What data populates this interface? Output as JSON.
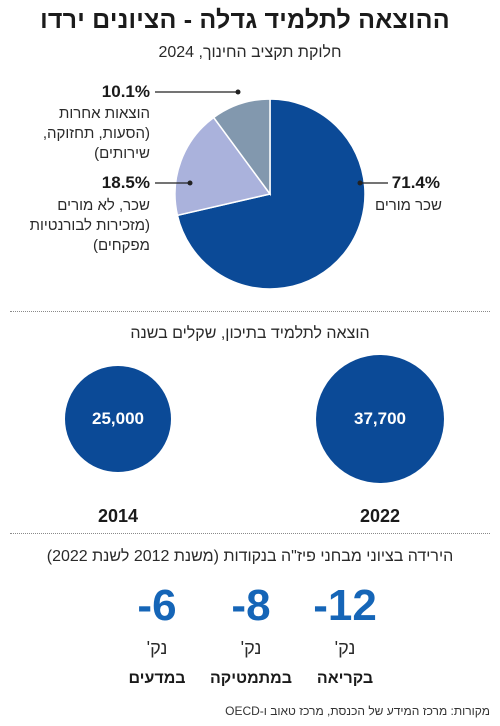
{
  "title": "ההוצאה לתלמיד גדלה - הציונים ירדו",
  "chart_data": [
    {
      "type": "pie",
      "title": "חלוקת תקציב החינוך, 2024",
      "slices": [
        {
          "label": "שכר מורים",
          "value": 71.4,
          "value_label": "71.4%",
          "color": "#0b4a97"
        },
        {
          "label": "שכר, לא מורים (מזכירות לבורנטיות מפקחים)",
          "label_lines": [
            "שכר, לא מורים",
            "(מזכירות לבורנטיות",
            "מפקחים)"
          ],
          "value": 18.5,
          "value_label": "18.5%",
          "color": "#aab2dc"
        },
        {
          "label": "הוצאות אחרות (הסעות, תחזוקה, שירותים)",
          "label_lines": [
            "הוצאות אחרות",
            "(הסעות, תחזוקה,",
            "שירותים)"
          ],
          "value": 10.1,
          "value_label": "10.1%",
          "color": "#8298ae"
        }
      ]
    },
    {
      "type": "bar",
      "title": "הוצאה לתלמיד בתיכון, שקלים בשנה",
      "categories": [
        "2014",
        "2022"
      ],
      "values": [
        25000,
        37700
      ],
      "value_labels": [
        "25,000",
        "37,700"
      ],
      "color": "#0b4a97"
    },
    {
      "type": "table",
      "title": "הירידה בציוני מבחני פיז\"ה בנקודות (משנת 2012 לשנת 2022)",
      "unit": "נק'",
      "items": [
        {
          "label": "בקריאה",
          "value": -12,
          "value_label": "12-"
        },
        {
          "label": "במתמטיקה",
          "value": -8,
          "value_label": "8-"
        },
        {
          "label": "במדעים",
          "value": -6,
          "value_label": "6-"
        }
      ],
      "color": "#1565b7"
    }
  ],
  "source": "מקורות: מרכז המידע של הכנסת, מרכז טאוב ו-OECD"
}
